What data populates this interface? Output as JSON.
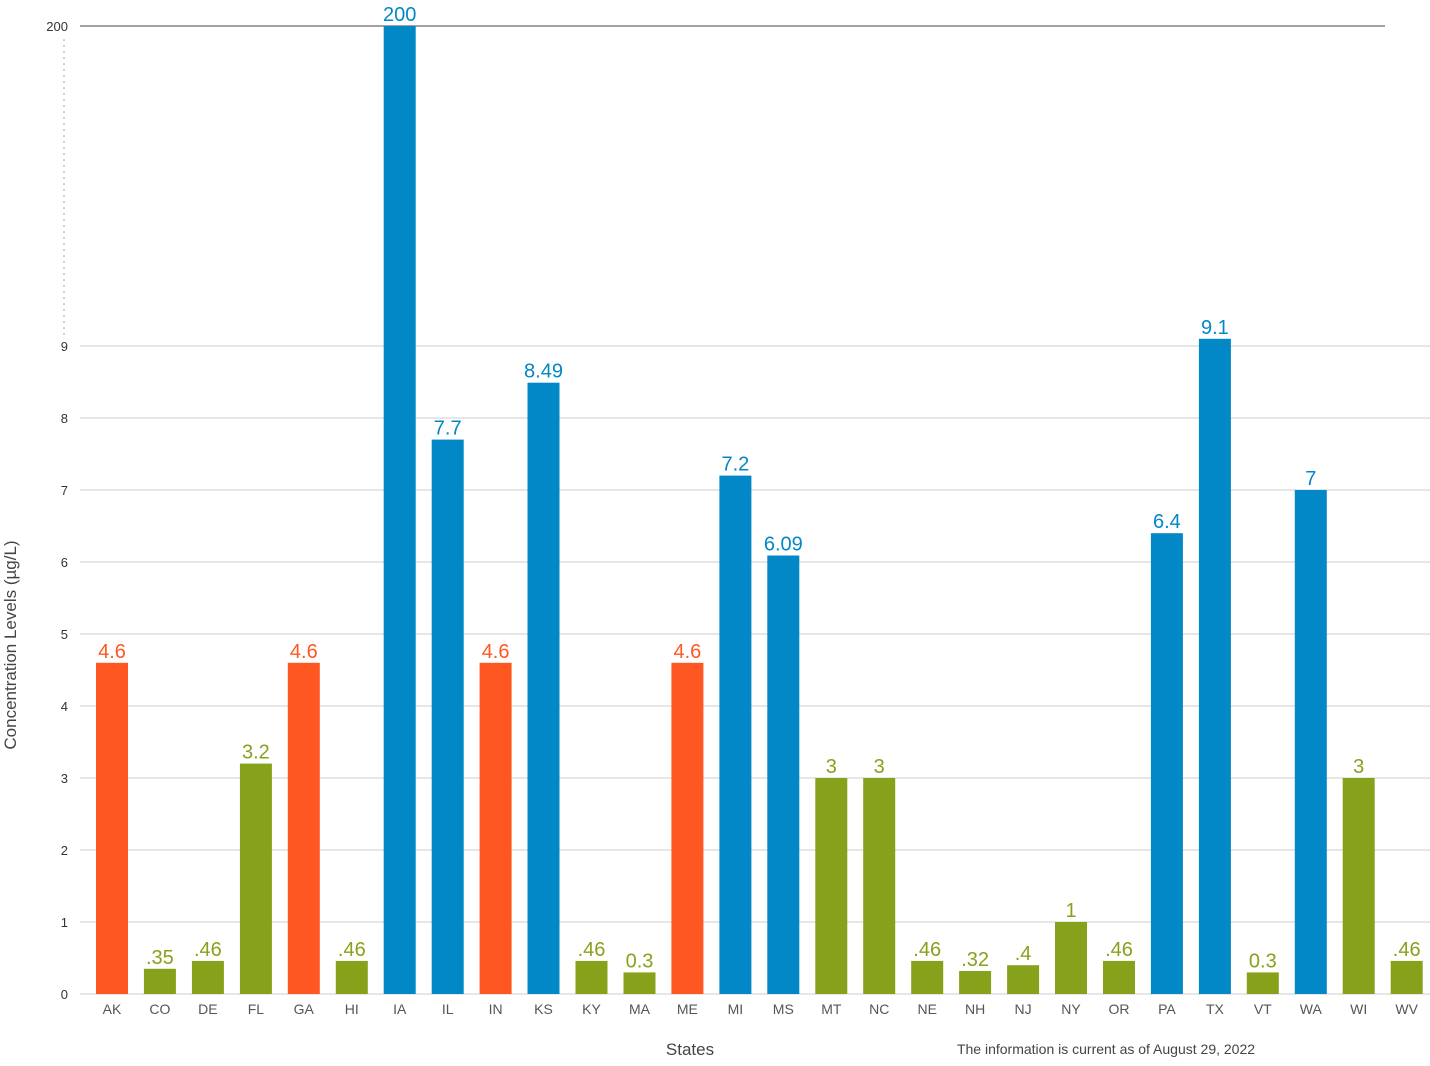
{
  "colors": {
    "orange": "#ff5722",
    "green": "#86a21a",
    "blue": "#0287c7",
    "grid": "#cccccc",
    "break_dots": "#999999"
  },
  "chart_data": {
    "type": "bar",
    "xlabel": "States",
    "ylabel": "Concentration Levels (µg/L)",
    "note": "The information is current as of August 29, 2022",
    "y_ticks": [
      "0",
      "1",
      "2",
      "3",
      "4",
      "5",
      "6",
      "7",
      "8",
      "9",
      "200"
    ],
    "axis_break": "between 9 and 200 (dotted)",
    "ylim": [
      0,
      200
    ],
    "grid": true,
    "legend": "none",
    "bars": [
      {
        "state": "AK",
        "value": 4.6,
        "label": "4.6",
        "color": "orange"
      },
      {
        "state": "CO",
        "value": 0.35,
        "label": ".35",
        "color": "green"
      },
      {
        "state": "DE",
        "value": 0.46,
        "label": ".46",
        "color": "green"
      },
      {
        "state": "FL",
        "value": 3.2,
        "label": "3.2",
        "color": "green"
      },
      {
        "state": "GA",
        "value": 4.6,
        "label": "4.6",
        "color": "orange"
      },
      {
        "state": "HI",
        "value": 0.46,
        "label": ".46",
        "color": "green"
      },
      {
        "state": "IA",
        "value": 200,
        "label": "200",
        "color": "blue"
      },
      {
        "state": "IL",
        "value": 7.7,
        "label": "7.7",
        "color": "blue"
      },
      {
        "state": "IN",
        "value": 4.6,
        "label": "4.6",
        "color": "orange"
      },
      {
        "state": "KS",
        "value": 8.49,
        "label": "8.49",
        "color": "blue"
      },
      {
        "state": "KY",
        "value": 0.46,
        "label": ".46",
        "color": "green"
      },
      {
        "state": "MA",
        "value": 0.3,
        "label": "0.3",
        "color": "green"
      },
      {
        "state": "ME",
        "value": 4.6,
        "label": "4.6",
        "color": "orange"
      },
      {
        "state": "MI",
        "value": 7.2,
        "label": "7.2",
        "color": "blue"
      },
      {
        "state": "MS",
        "value": 6.09,
        "label": "6.09",
        "color": "blue"
      },
      {
        "state": "MT",
        "value": 3,
        "label": "3",
        "color": "green"
      },
      {
        "state": "NC",
        "value": 3,
        "label": "3",
        "color": "green"
      },
      {
        "state": "NE",
        "value": 0.46,
        "label": ".46",
        "color": "green"
      },
      {
        "state": "NH",
        "value": 0.32,
        "label": ".32",
        "color": "green"
      },
      {
        "state": "NJ",
        "value": 0.4,
        "label": ".4",
        "color": "green"
      },
      {
        "state": "NY",
        "value": 1,
        "label": "1",
        "color": "green"
      },
      {
        "state": "OR",
        "value": 0.46,
        "label": ".46",
        "color": "green"
      },
      {
        "state": "PA",
        "value": 6.4,
        "label": "6.4",
        "color": "blue"
      },
      {
        "state": "TX",
        "value": 9.1,
        "label": "9.1",
        "color": "blue"
      },
      {
        "state": "VT",
        "value": 0.3,
        "label": "0.3",
        "color": "green"
      },
      {
        "state": "WA",
        "value": 7,
        "label": "7",
        "color": "blue"
      },
      {
        "state": "WI",
        "value": 3,
        "label": "3",
        "color": "green"
      },
      {
        "state": "WV",
        "value": 0.46,
        "label": ".46",
        "color": "green"
      }
    ]
  }
}
